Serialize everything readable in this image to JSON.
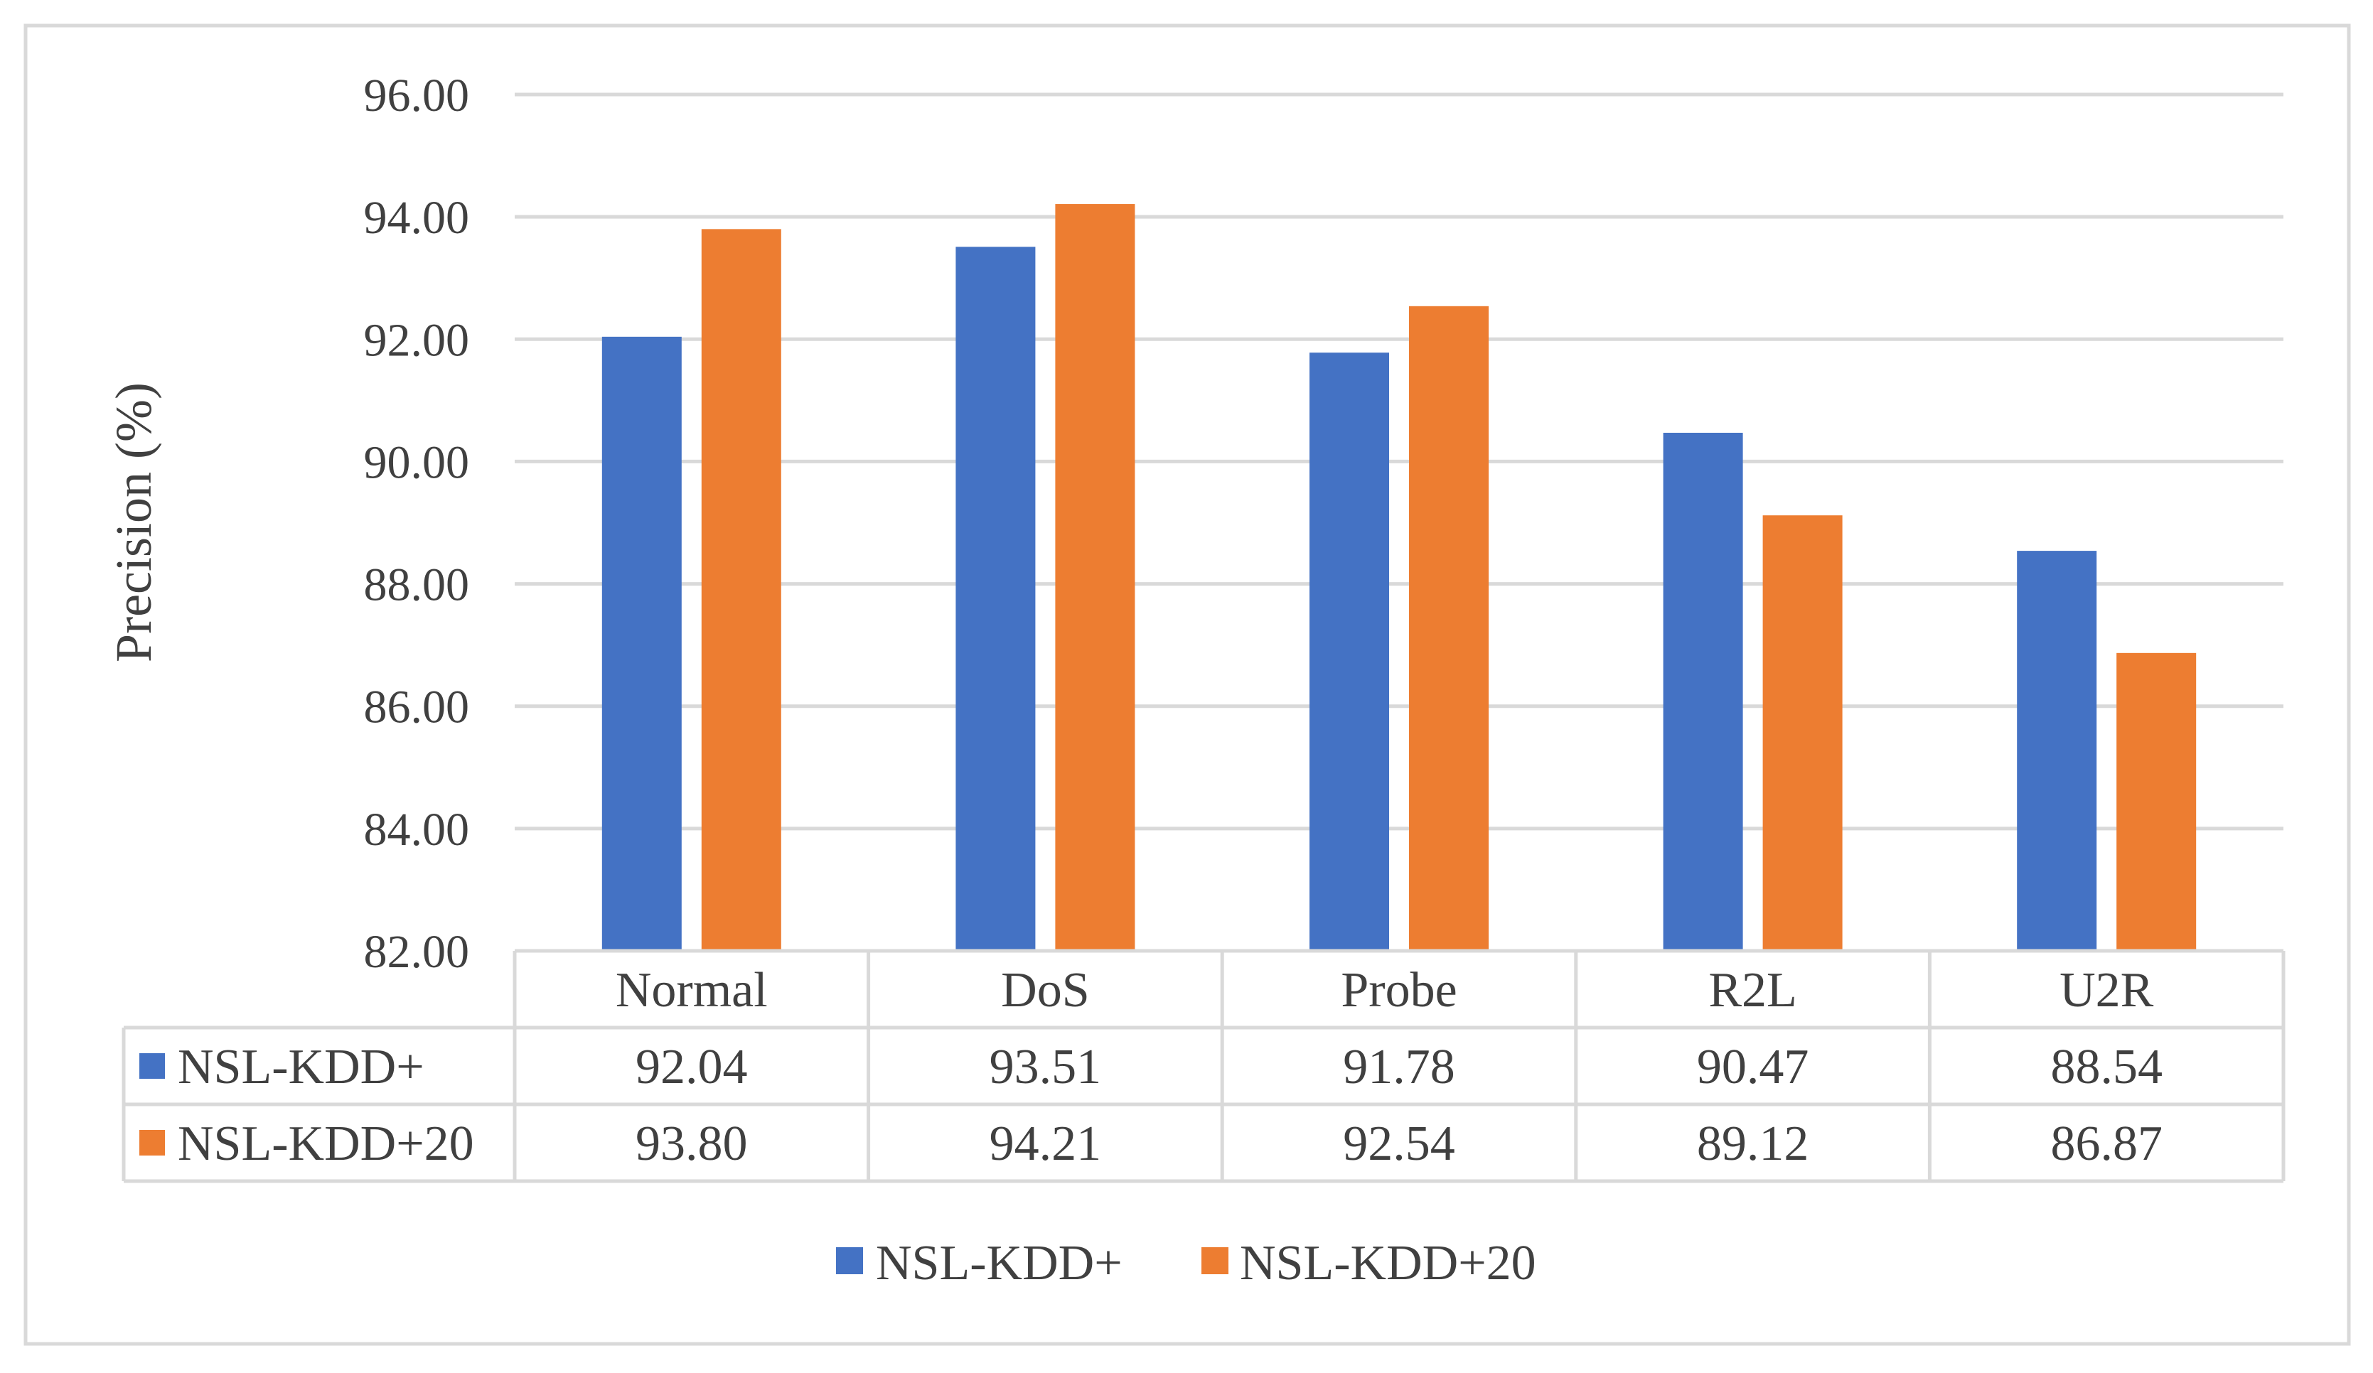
{
  "chart_data": {
    "type": "bar",
    "title": "",
    "xlabel": "",
    "ylabel": "Precision (%)",
    "ylim": [
      82,
      96
    ],
    "ytick_step": 2,
    "ytick_labels": [
      "82.00",
      "84.00",
      "86.00",
      "88.00",
      "90.00",
      "92.00",
      "94.00",
      "96.00"
    ],
    "grid": true,
    "legend_position": "bottom",
    "categories": [
      "Normal",
      "DoS",
      "Probe",
      "R2L",
      "U2R"
    ],
    "series": [
      {
        "name": "NSL-KDD+",
        "color": "#4472C4",
        "values": [
          92.04,
          93.51,
          91.78,
          90.47,
          88.54
        ],
        "labels": [
          "92.04",
          "93.51",
          "91.78",
          "90.47",
          "88.54"
        ]
      },
      {
        "name": "NSL-KDD+20",
        "color": "#ED7D31",
        "values": [
          93.8,
          94.21,
          92.54,
          89.12,
          86.87
        ],
        "labels": [
          "93.80",
          "94.21",
          "92.54",
          "89.12",
          "86.87"
        ]
      }
    ],
    "data_table": true
  }
}
